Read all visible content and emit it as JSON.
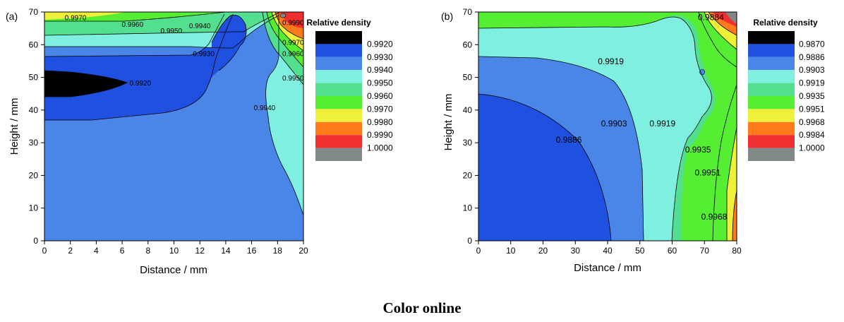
{
  "caption": "Color online",
  "chart_data": [
    {
      "type": "contour",
      "panel": "(a)",
      "xlabel": "Distance / mm",
      "ylabel": "Height / mm",
      "xlim": [
        0,
        20
      ],
      "ylim": [
        0,
        70
      ],
      "xticks": [
        "0",
        "2",
        "4",
        "6",
        "8",
        "10",
        "12",
        "14",
        "16",
        "18",
        "20"
      ],
      "yticks": [
        "0",
        "10",
        "20",
        "30",
        "40",
        "50",
        "60",
        "70"
      ],
      "legend": {
        "title": "Relative density",
        "levels": [
          "0.9920",
          "0.9930",
          "0.9940",
          "0.9950",
          "0.9960",
          "0.9970",
          "0.9980",
          "0.9990",
          "1.0000"
        ],
        "colors": [
          "#000000",
          "#1f50e0",
          "#4a86e8",
          "#7ff0e0",
          "#52e090",
          "#55ee33",
          "#eef03a",
          "#ff7a1a",
          "#f03030",
          "#808888"
        ]
      },
      "contour_labels": [
        {
          "text": "0.9970",
          "x": 2.4,
          "y": 67.5
        },
        {
          "text": "0.9960",
          "x": 6.8,
          "y": 65.5
        },
        {
          "text": "0.9950",
          "x": 9.8,
          "y": 63.5
        },
        {
          "text": "0.9940",
          "x": 12.0,
          "y": 65.0
        },
        {
          "text": "0.9930",
          "x": 12.3,
          "y": 56.5
        },
        {
          "text": "0.9920",
          "x": 7.4,
          "y": 47.5
        },
        {
          "text": "0.9940",
          "x": 17.0,
          "y": 40.0
        },
        {
          "text": "0.9990",
          "x": 19.2,
          "y": 66.0
        },
        {
          "text": "0.9970",
          "x": 19.2,
          "y": 60.0
        },
        {
          "text": "0.9960",
          "x": 19.2,
          "y": 56.5
        },
        {
          "text": "0.9950",
          "x": 19.2,
          "y": 49.0
        }
      ]
    },
    {
      "type": "contour",
      "panel": "(b)",
      "xlabel": "Distance / mm",
      "ylabel": "Height / mm",
      "xlim": [
        0,
        80
      ],
      "ylim": [
        0,
        70
      ],
      "xticks": [
        "0",
        "10",
        "20",
        "30",
        "40",
        "50",
        "60",
        "70",
        "80"
      ],
      "yticks": [
        "0",
        "10",
        "20",
        "30",
        "40",
        "50",
        "60",
        "70"
      ],
      "legend": {
        "title": "Relative density",
        "levels": [
          "0.9870",
          "0.9886",
          "0.9903",
          "0.9919",
          "0.9935",
          "0.9951",
          "0.9968",
          "0.9984",
          "1.0000"
        ],
        "colors": [
          "#000000",
          "#1f50e0",
          "#4a86e8",
          "#7ff0e0",
          "#52e090",
          "#55ee33",
          "#eef03a",
          "#ff7a1a",
          "#f03030",
          "#808888"
        ]
      },
      "contour_labels": [
        {
          "text": "0.9919",
          "x": 41,
          "y": 54
        },
        {
          "text": "0.9884",
          "x": 72,
          "y": 67.5
        },
        {
          "text": "0.9903",
          "x": 42,
          "y": 35
        },
        {
          "text": "0.9919",
          "x": 57,
          "y": 35
        },
        {
          "text": "0.9886",
          "x": 28,
          "y": 30
        },
        {
          "text": "0.9935",
          "x": 68,
          "y": 27
        },
        {
          "text": "0.9951",
          "x": 71,
          "y": 20
        },
        {
          "text": "0.9968",
          "x": 73,
          "y": 6.5
        }
      ]
    }
  ]
}
